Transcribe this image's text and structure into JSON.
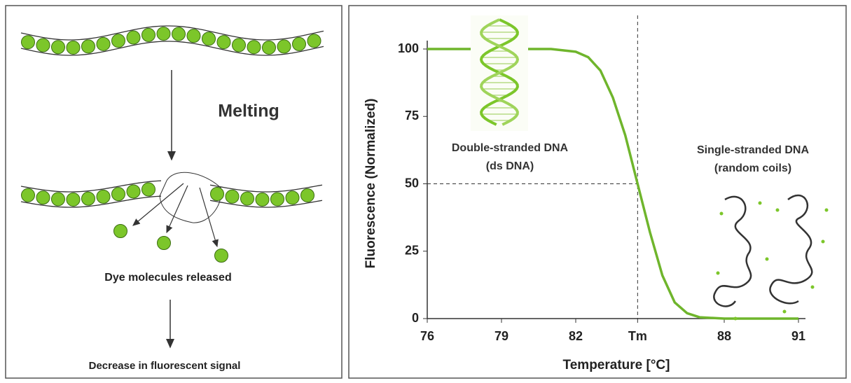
{
  "diagram": {
    "melting": "Melting",
    "released": "Dye molecules released",
    "decrease": "Decrease in fluorescent signal"
  },
  "chart_data": {
    "type": "line",
    "x_label": "Temperature [°C]",
    "y_label": "Fluorescence (Normalized)",
    "x": [
      76,
      78,
      80,
      81,
      82,
      82.5,
      83,
      83.5,
      84,
      84.5,
      85,
      85.5,
      86,
      86.5,
      87,
      88,
      89,
      90,
      91
    ],
    "values": [
      100,
      100,
      100,
      100,
      99,
      97,
      92,
      82,
      68,
      50,
      32,
      16,
      6,
      2,
      0.5,
      0,
      0,
      0,
      0
    ],
    "color": "#6fb52c",
    "xlim": [
      76,
      91
    ],
    "xticks": [
      76,
      79,
      82,
      {
        "value": 84.5,
        "label": "Tm"
      },
      88,
      91
    ],
    "ylim": [
      0,
      100
    ],
    "yticks": [
      0,
      25,
      50,
      75,
      100
    ],
    "annotations": [
      "Double-stranded DNA",
      "(ds DNA)",
      "Single-stranded DNA",
      "(random coils)"
    ]
  }
}
